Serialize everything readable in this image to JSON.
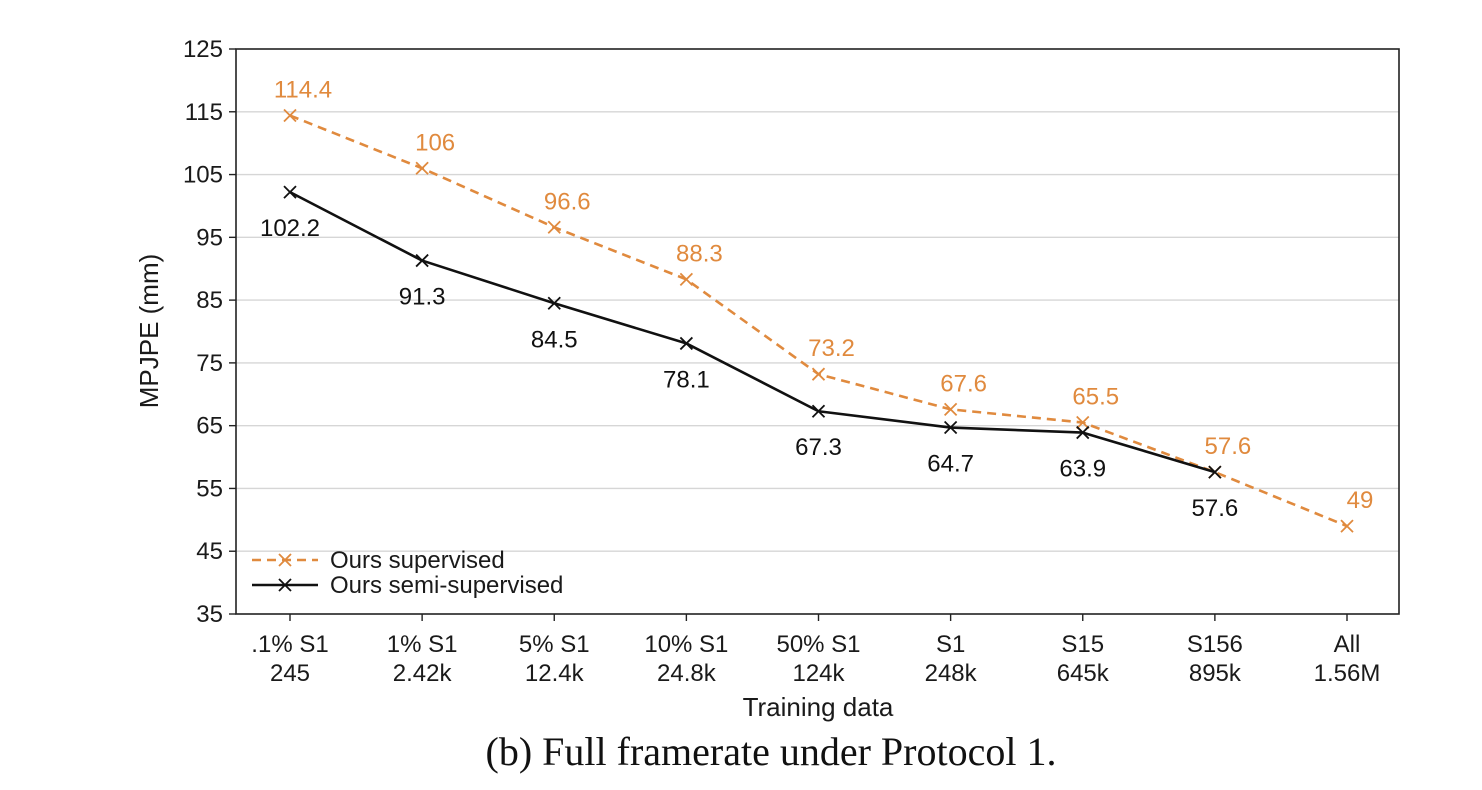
{
  "chart_data": {
    "type": "line",
    "title": "",
    "xlabel": "Training data",
    "ylabel": "MPJPE (mm)",
    "ylim": [
      35,
      125
    ],
    "yticks": [
      35,
      45,
      55,
      65,
      75,
      85,
      95,
      105,
      115,
      125
    ],
    "grid": "horizontal",
    "legend_position": "bottom-left",
    "categories": [
      [
        ".1% S1",
        "245"
      ],
      [
        "1% S1",
        "2.42k"
      ],
      [
        "5% S1",
        "12.4k"
      ],
      [
        "10% S1",
        "24.8k"
      ],
      [
        "50% S1",
        "124k"
      ],
      [
        "S1",
        "248k"
      ],
      [
        "S15",
        "645k"
      ],
      [
        "S156",
        "895k"
      ],
      [
        "All",
        "1.56M"
      ]
    ],
    "series": [
      {
        "name": "Ours supervised",
        "color": "#e08a3e",
        "style": "dashed",
        "marker": "x",
        "values": [
          114.4,
          106,
          96.6,
          88.3,
          73.2,
          67.6,
          65.5,
          57.6,
          49
        ],
        "labels": [
          "114.4",
          "106",
          "96.6",
          "88.3",
          "73.2",
          "67.6",
          "65.5",
          "57.6",
          "49"
        ],
        "label_side": "above"
      },
      {
        "name": "Ours semi-supervised",
        "color": "#111111",
        "style": "solid",
        "marker": "x",
        "values": [
          102.2,
          91.3,
          84.5,
          78.1,
          67.3,
          64.7,
          63.9,
          57.6,
          null
        ],
        "labels": [
          "102.2",
          "91.3",
          "84.5",
          "78.1",
          "67.3",
          "64.7",
          "63.9",
          "57.6",
          null
        ],
        "label_side": "below"
      }
    ]
  },
  "caption": "(b) Full framerate under Protocol 1."
}
